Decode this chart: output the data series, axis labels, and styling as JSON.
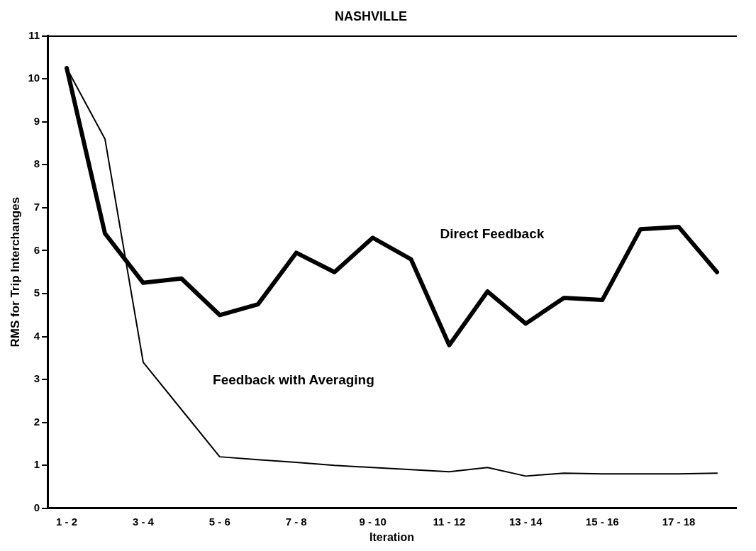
{
  "chart_data": {
    "type": "line",
    "title": "NASHVILLE",
    "xlabel": "Iteration",
    "ylabel": "RMS for Trip Interchanges",
    "categories": [
      "1 - 2",
      null,
      "3 - 4",
      null,
      "5 - 6",
      null,
      "7 - 8",
      null,
      "9 - 10",
      null,
      "11 - 12",
      null,
      "13 - 14",
      null,
      "15 - 16",
      null,
      "17 - 18",
      null
    ],
    "series": [
      {
        "name": "Direct Feedback",
        "color": "#000000",
        "values": [
          10.25,
          6.4,
          5.25,
          5.35,
          4.5,
          4.75,
          5.95,
          5.5,
          6.3,
          5.8,
          3.8,
          5.05,
          4.3,
          4.9,
          4.85,
          6.5,
          6.55,
          5.5
        ]
      },
      {
        "name": "Feedback with Averaging",
        "color": "#000000",
        "values": [
          10.25,
          8.6,
          3.4,
          2.3,
          1.2,
          1.13,
          1.07,
          1.0,
          0.95,
          0.9,
          0.85,
          0.95,
          0.75,
          0.82,
          0.8,
          0.8,
          0.8,
          0.82
        ]
      }
    ],
    "ylim": [
      0,
      11
    ],
    "yticks": [
      0,
      1,
      2,
      3,
      4,
      5,
      6,
      7,
      8,
      9,
      10,
      11
    ],
    "grid": false,
    "legend": false,
    "marker": "none",
    "line_style": "solid"
  }
}
